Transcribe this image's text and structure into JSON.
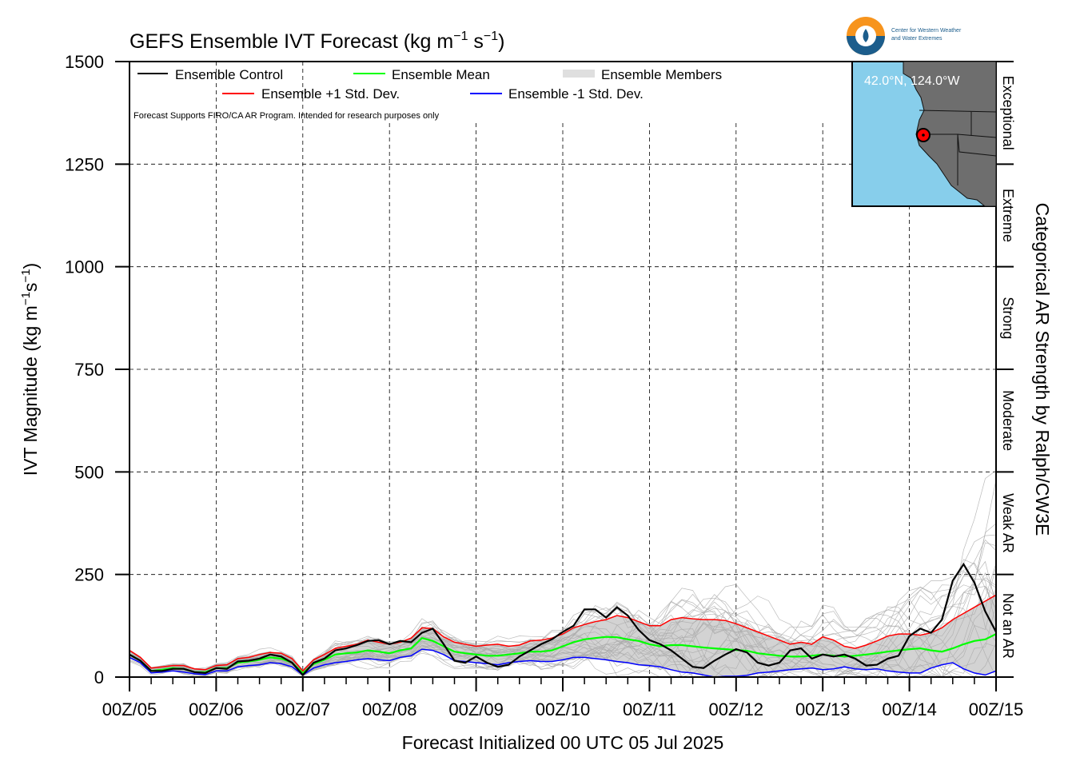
{
  "chart_data": {
    "type": "line",
    "title": "GEFS Ensemble IVT Forecast (kg m",
    "title_sup1": "−1",
    "title_mid": " s",
    "title_sup2": "−1",
    "title_end": ")",
    "xlabel": "Forecast Initialized 00 UTC 05 Jul 2025",
    "ylabel_main": "IVT Magnitude (kg m",
    "ylabel_sup1": "−1",
    "ylabel_mid": "s",
    "ylabel_sup2": "−1",
    "ylabel_end": ")",
    "right_label": "Categorical AR Strength by Ralph/CW3E",
    "ylim": [
      0,
      1500
    ],
    "xlim": [
      0,
      240
    ],
    "grid": true,
    "y_ticks": [
      "0",
      "250",
      "500",
      "750",
      "1000",
      "1250",
      "1500"
    ],
    "y_tick_values": [
      0,
      250,
      500,
      750,
      1000,
      1250,
      1500
    ],
    "x_ticks": [
      "00Z/05",
      "00Z/06",
      "00Z/07",
      "00Z/08",
      "00Z/09",
      "00Z/10",
      "00Z/11",
      "00Z/12",
      "00Z/13",
      "00Z/14",
      "00Z/15"
    ],
    "x_tick_values": [
      0,
      24,
      48,
      72,
      96,
      120,
      144,
      168,
      192,
      216,
      240
    ],
    "x_units": "forecast hours",
    "categories": [
      {
        "label": "Not an AR",
        "from": 0,
        "to": 250
      },
      {
        "label": "Weak AR",
        "from": 250,
        "to": 500
      },
      {
        "label": "Moderate",
        "from": 500,
        "to": 750
      },
      {
        "label": "Strong",
        "from": 750,
        "to": 1000
      },
      {
        "label": "Extreme",
        "from": 1000,
        "to": 1250
      },
      {
        "label": "Exceptional",
        "from": 1250,
        "to": 1500
      }
    ],
    "legend": {
      "placement": "top-left",
      "control": "Ensemble Control",
      "mean": "Ensemble Mean",
      "members": "Ensemble Members",
      "plus": "Ensemble +1 Std. Dev.",
      "minus": "Ensemble -1 Std. Dev."
    },
    "note": "Forecast Supports FIRO/CA AR Program. Intended for research purposes only",
    "colors": {
      "control": "#000000",
      "mean": "#00ff00",
      "plus": "#ff0000",
      "minus": "#0000ff",
      "members": "#aaaaaa",
      "spread_fill": "#d3d3d3",
      "map_ocean": "#87ceeb",
      "map_land": "#6e6e6e",
      "marker": "#ff0000"
    },
    "inset_location": "42.0°N, 124.0°W",
    "logo_text": [
      "Center for Western Weather",
      "and Water Extremes"
    ],
    "series": [
      {
        "name": "Ensemble Control",
        "key": "control",
        "x": [
          0,
          3,
          6,
          9,
          12,
          15,
          18,
          21,
          24,
          27,
          30,
          33,
          36,
          39,
          42,
          45,
          48,
          51,
          54,
          57,
          60,
          63,
          66,
          69,
          72,
          75,
          78,
          81,
          84,
          87,
          90,
          93,
          96,
          99,
          102,
          105,
          108,
          111,
          114,
          117,
          120,
          123,
          126,
          129,
          132,
          135,
          138,
          141,
          144,
          147,
          150,
          153,
          156,
          159,
          162,
          165,
          168,
          171,
          174,
          177,
          180,
          183,
          186,
          189,
          192,
          195,
          198,
          201,
          204,
          207,
          210,
          213,
          216,
          219,
          222,
          225,
          228,
          231,
          234,
          237,
          240
        ],
        "y": [
          55,
          40,
          15,
          15,
          20,
          20,
          12,
          10,
          22,
          20,
          38,
          40,
          45,
          55,
          50,
          35,
          5,
          35,
          45,
          65,
          70,
          78,
          88,
          90,
          80,
          88,
          85,
          108,
          118,
          80,
          40,
          35,
          50,
          35,
          25,
          30,
          50,
          65,
          80,
          92,
          110,
          125,
          165,
          165,
          145,
          170,
          150,
          115,
          90,
          80,
          65,
          45,
          25,
          22,
          40,
          55,
          68,
          60,
          35,
          28,
          35,
          65,
          70,
          45,
          55,
          50,
          55,
          45,
          28,
          30,
          45,
          52,
          100,
          118,
          108,
          140,
          235,
          275,
          230,
          160,
          110
        ]
      },
      {
        "name": "Ensemble Mean",
        "key": "mean",
        "x": [
          0,
          3,
          6,
          9,
          12,
          15,
          18,
          21,
          24,
          27,
          30,
          33,
          36,
          39,
          42,
          45,
          48,
          51,
          54,
          57,
          60,
          63,
          66,
          69,
          72,
          75,
          78,
          81,
          84,
          87,
          90,
          93,
          96,
          99,
          102,
          105,
          108,
          111,
          114,
          117,
          120,
          123,
          126,
          129,
          132,
          135,
          138,
          141,
          144,
          147,
          150,
          153,
          156,
          159,
          162,
          165,
          168,
          171,
          174,
          177,
          180,
          183,
          186,
          189,
          192,
          195,
          198,
          201,
          204,
          207,
          210,
          213,
          216,
          219,
          222,
          225,
          228,
          231,
          234,
          237,
          240
        ],
        "y": [
          55,
          40,
          15,
          18,
          22,
          20,
          12,
          12,
          22,
          22,
          35,
          38,
          42,
          48,
          45,
          35,
          10,
          32,
          42,
          55,
          58,
          60,
          65,
          62,
          58,
          65,
          70,
          95,
          88,
          75,
          62,
          58,
          55,
          52,
          52,
          55,
          58,
          62,
          62,
          65,
          75,
          85,
          92,
          95,
          98,
          97,
          92,
          88,
          80,
          75,
          78,
          78,
          75,
          72,
          70,
          68,
          66,
          64,
          58,
          55,
          52,
          50,
          50,
          52,
          55,
          52,
          50,
          52,
          55,
          58,
          62,
          65,
          68,
          70,
          65,
          62,
          70,
          80,
          88,
          92,
          105
        ]
      },
      {
        "name": "Ensemble +1 Std. Dev.",
        "key": "plus",
        "x": [
          0,
          3,
          6,
          9,
          12,
          15,
          18,
          21,
          24,
          27,
          30,
          33,
          36,
          39,
          42,
          45,
          48,
          51,
          54,
          57,
          60,
          63,
          66,
          69,
          72,
          75,
          78,
          81,
          84,
          87,
          90,
          93,
          96,
          99,
          102,
          105,
          108,
          111,
          114,
          117,
          120,
          123,
          126,
          129,
          132,
          135,
          138,
          141,
          144,
          147,
          150,
          153,
          156,
          159,
          162,
          165,
          168,
          171,
          174,
          177,
          180,
          183,
          186,
          189,
          192,
          195,
          198,
          201,
          204,
          207,
          210,
          213,
          216,
          219,
          222,
          225,
          228,
          231,
          234,
          237,
          240
        ],
        "y": [
          65,
          48,
          22,
          25,
          28,
          28,
          20,
          18,
          28,
          30,
          45,
          48,
          55,
          60,
          58,
          45,
          15,
          42,
          55,
          70,
          75,
          80,
          90,
          85,
          80,
          85,
          95,
          120,
          118,
          98,
          85,
          80,
          75,
          78,
          80,
          75,
          78,
          88,
          90,
          95,
          105,
          120,
          128,
          135,
          140,
          150,
          145,
          135,
          125,
          125,
          140,
          145,
          142,
          140,
          140,
          138,
          130,
          120,
          110,
          100,
          90,
          80,
          85,
          80,
          98,
          90,
          75,
          70,
          78,
          88,
          100,
          105,
          105,
          102,
          108,
          120,
          140,
          155,
          170,
          185,
          200
        ]
      },
      {
        "name": "Ensemble -1 Std. Dev.",
        "key": "minus",
        "x": [
          0,
          3,
          6,
          9,
          12,
          15,
          18,
          21,
          24,
          27,
          30,
          33,
          36,
          39,
          42,
          45,
          48,
          51,
          54,
          57,
          60,
          63,
          66,
          69,
          72,
          75,
          78,
          81,
          84,
          87,
          90,
          93,
          96,
          99,
          102,
          105,
          108,
          111,
          114,
          117,
          120,
          123,
          126,
          129,
          132,
          135,
          138,
          141,
          144,
          147,
          150,
          153,
          156,
          159,
          162,
          165,
          168,
          171,
          174,
          177,
          180,
          183,
          186,
          189,
          192,
          195,
          198,
          201,
          204,
          207,
          210,
          213,
          216,
          219,
          222,
          225,
          228,
          231,
          234,
          237,
          240
        ],
        "y": [
          48,
          35,
          10,
          12,
          15,
          12,
          8,
          6,
          15,
          15,
          25,
          28,
          30,
          35,
          33,
          25,
          5,
          22,
          30,
          35,
          38,
          42,
          45,
          42,
          40,
          48,
          52,
          68,
          65,
          55,
          40,
          38,
          35,
          33,
          30,
          35,
          38,
          40,
          38,
          38,
          42,
          48,
          48,
          45,
          42,
          38,
          35,
          30,
          28,
          25,
          18,
          12,
          10,
          5,
          0,
          2,
          2,
          4,
          10,
          12,
          15,
          18,
          20,
          22,
          18,
          20,
          25,
          20,
          18,
          20,
          15,
          12,
          10,
          10,
          22,
          30,
          35,
          20,
          10,
          5,
          15
        ]
      }
    ],
    "member_count": 30
  }
}
